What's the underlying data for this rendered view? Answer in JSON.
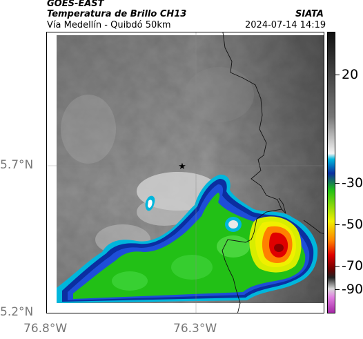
{
  "header": {
    "product": "GOES-EAST",
    "title": "Temperatura de Brillo CH13",
    "region": "Vía Medellín - Quibdó 50km",
    "agency": "SIATA",
    "datetime": "2024-07-14 14:19"
  },
  "axes": {
    "lat_labels": [
      "5.7°N",
      "5.2°N"
    ],
    "lon_labels": [
      "76.8°W",
      "76.3°W"
    ]
  },
  "colorbar": {
    "ticks": [
      "20",
      "-30",
      "-50",
      "-70",
      "-90"
    ],
    "colors": {
      "white": "#ffffff",
      "cyan": "#00b6dc",
      "blue": "#0b2ea0",
      "green": "#22c016",
      "yellow": "#f0f000",
      "orange": "#ff8000",
      "red": "#e00000",
      "darkred": "#6e0000",
      "magenta": "#c040c0"
    }
  },
  "map": {
    "marker": "star-icon"
  }
}
